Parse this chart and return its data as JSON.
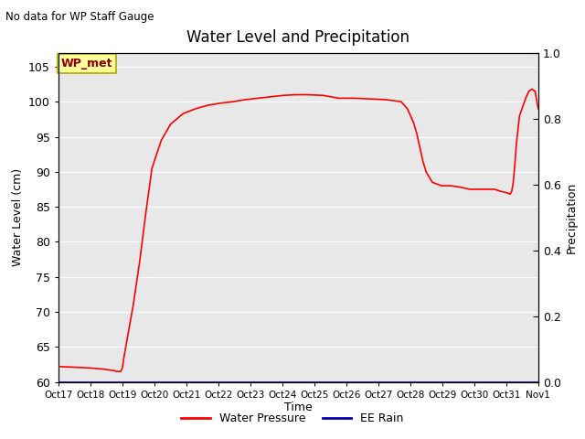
{
  "title": "Water Level and Precipitation",
  "top_left_text": "No data for WP Staff Gauge",
  "xlabel": "Time",
  "ylabel_left": "Water Level (cm)",
  "ylabel_right": "Precipitation",
  "ylim_left": [
    60,
    107
  ],
  "ylim_right": [
    0.0,
    1.0
  ],
  "yticks_left": [
    60,
    65,
    70,
    75,
    80,
    85,
    90,
    95,
    100,
    105
  ],
  "yticks_right": [
    0.0,
    0.2,
    0.4,
    0.6,
    0.8,
    1.0
  ],
  "xtick_labels": [
    "Oct 17",
    "Oct 18",
    "Oct 19",
    "Oct 20",
    "Oct 21",
    "Oct 22",
    "Oct 23",
    "Oct 24",
    "Oct 25",
    "Oct 26",
    "Oct 27",
    "Oct 28",
    "Oct 29",
    "Oct 30",
    "Oct 31",
    "Nov 1"
  ],
  "annotation_label": "WP_met",
  "bg_color": "#e8e8e8",
  "line_color_water": "#ff0000",
  "line_color_rain": "#0000aa",
  "legend_labels": [
    "Water Pressure",
    "EE Rain"
  ],
  "water_x": [
    0,
    0.5,
    1.0,
    1.5,
    1.8,
    1.85,
    1.9,
    1.95,
    2.0,
    2.05,
    2.1,
    2.2,
    2.4,
    2.6,
    2.8,
    3.0,
    3.3,
    3.6,
    4.0,
    4.4,
    4.8,
    5.2,
    5.6,
    6.0,
    6.4,
    6.8,
    7.2,
    7.6,
    8.0,
    8.5,
    9.0,
    9.5,
    10.0,
    10.5,
    11.0,
    11.2,
    11.4,
    11.5,
    11.6,
    11.7,
    11.8,
    12.0,
    12.3,
    12.6,
    12.9,
    13.2,
    13.5,
    13.8,
    14.0,
    14.2,
    14.4,
    14.45,
    14.5,
    14.55,
    14.6,
    14.65,
    14.7,
    14.8,
    15.0,
    15.1,
    15.2,
    15.3,
    15.4
  ],
  "water_y": [
    62.2,
    62.1,
    62.0,
    61.8,
    61.6,
    61.5,
    61.5,
    61.5,
    61.5,
    62.0,
    63.5,
    66.0,
    71.0,
    77.0,
    84.0,
    90.5,
    94.5,
    96.8,
    98.3,
    99.0,
    99.5,
    99.8,
    100.0,
    100.3,
    100.5,
    100.7,
    100.9,
    101.0,
    101.0,
    100.9,
    100.5,
    100.5,
    100.4,
    100.3,
    100.0,
    99.0,
    97.0,
    95.5,
    93.5,
    91.5,
    90.0,
    88.5,
    88.0,
    88.0,
    87.8,
    87.5,
    87.5,
    87.5,
    87.5,
    87.2,
    87.0,
    86.9,
    86.8,
    87.2,
    88.5,
    91.0,
    94.0,
    98.0,
    100.5,
    101.5,
    101.8,
    101.5,
    99.0
  ]
}
